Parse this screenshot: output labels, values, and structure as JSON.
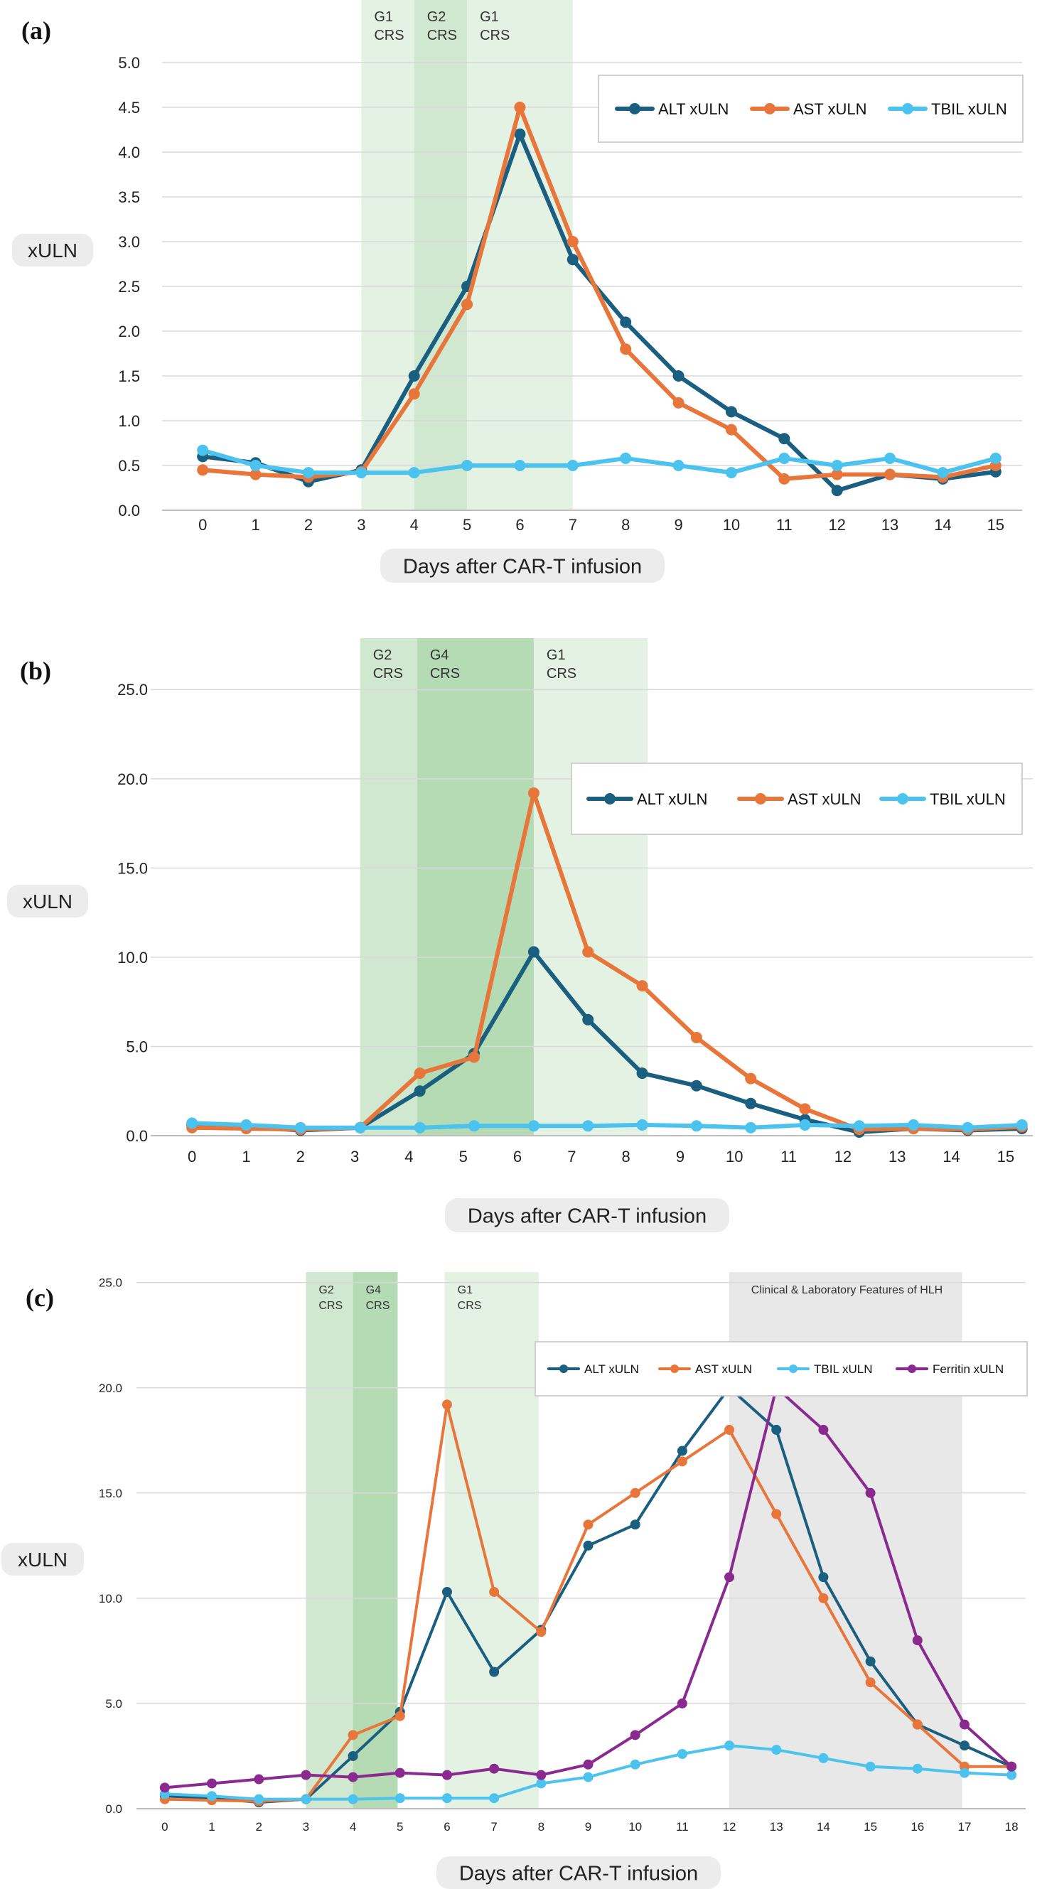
{
  "colors": {
    "ALT": "#1a5f80",
    "AST": "#e8763a",
    "TBIL": "#4bc3ee",
    "Ferritin": "#8a2a91",
    "band_light": "#e4f2e4",
    "band_mid": "#cfe8cf",
    "band_dark": "#b5dbb4",
    "band_grey": "#e8e8e8",
    "grid": "#d9d9d9",
    "label_bg": "#ececec"
  },
  "chart_data": [
    {
      "id": "a",
      "panel_label": "(a)",
      "type": "line",
      "ylabel": "xULN",
      "xlabel": "Days after CAR-T infusion",
      "xlim": [
        -0.5,
        15.5
      ],
      "ylim": [
        0,
        5
      ],
      "yticks": [
        "0.0",
        "0.5",
        "1.0",
        "1.5",
        "2.0",
        "2.5",
        "3.0",
        "3.5",
        "4.0",
        "4.5",
        "5.0"
      ],
      "ytick_values": [
        0,
        0.5,
        1,
        1.5,
        2,
        2.5,
        3,
        3.5,
        4,
        4.5,
        5
      ],
      "xticks": [
        "0",
        "1",
        "2",
        "3",
        "4",
        "5",
        "6",
        "7",
        "8",
        "9",
        "10",
        "11",
        "12",
        "13",
        "14",
        "15"
      ],
      "xtick_values": [
        0,
        1,
        2,
        3,
        4,
        5,
        6,
        7,
        8,
        9,
        10,
        11,
        12,
        13,
        14,
        15
      ],
      "grid": true,
      "legend_placement": "top-right",
      "bands": [
        {
          "from": 3,
          "to": 4,
          "shade": "light",
          "labels": [
            "G1",
            "CRS"
          ],
          "label_at": 3.25
        },
        {
          "from": 4,
          "to": 5,
          "shade": "mid",
          "labels": [
            "G2",
            "CRS"
          ],
          "label_at": 4.25
        },
        {
          "from": 5,
          "to": 7,
          "shade": "light",
          "labels": [
            "G1",
            "CRS"
          ],
          "label_at": 6.0
        }
      ],
      "series": [
        {
          "name": "ALT xULN",
          "key": "ALT",
          "x": [
            0,
            1,
            2,
            3,
            4,
            5,
            6,
            7,
            8,
            9,
            10,
            11,
            12,
            13,
            14,
            15
          ],
          "values": [
            0.6,
            0.53,
            0.32,
            0.45,
            1.5,
            2.5,
            4.2,
            2.8,
            2.1,
            1.5,
            1.1,
            0.8,
            0.22,
            0.4,
            0.35,
            0.43
          ]
        },
        {
          "name": "AST xULN",
          "key": "AST",
          "x": [
            0,
            1,
            2,
            3,
            4,
            5,
            6,
            7,
            8,
            9,
            10,
            11,
            12,
            13,
            14,
            15
          ],
          "values": [
            0.45,
            0.4,
            0.37,
            0.43,
            1.3,
            2.3,
            4.5,
            3.0,
            1.8,
            1.2,
            0.9,
            0.35,
            0.4,
            0.4,
            0.37,
            0.5
          ]
        },
        {
          "name": "TBIL xULN",
          "key": "TBIL",
          "x": [
            0,
            1,
            2,
            3,
            4,
            5,
            6,
            7,
            8,
            9,
            10,
            11,
            12,
            13,
            14,
            15
          ],
          "values": [
            0.67,
            0.5,
            0.42,
            0.42,
            0.42,
            0.5,
            0.5,
            0.5,
            0.58,
            0.5,
            0.42,
            0.58,
            0.5,
            0.58,
            0.42,
            0.58
          ]
        }
      ]
    },
    {
      "id": "b",
      "panel_label": "(b)",
      "type": "line",
      "ylabel": "xULN",
      "xlabel": "Days after CAR-T infusion",
      "xlim": [
        -0.5,
        15.5
      ],
      "ylim": [
        0,
        28
      ],
      "yticks": [
        "0.0",
        "5.0",
        "10.0",
        "15.0",
        "20.0",
        "25.0"
      ],
      "ytick_values": [
        0,
        5,
        10,
        15,
        20,
        25
      ],
      "xticks": [
        "0",
        "1",
        "2",
        "3",
        "4",
        "5",
        "6",
        "7",
        "8",
        "9",
        "10",
        "11",
        "12",
        "13",
        "14",
        "15"
      ],
      "xtick_values": [
        0,
        1,
        2,
        3,
        4,
        5,
        6,
        7,
        8,
        9,
        10,
        11,
        12,
        13,
        14,
        15
      ],
      "grid": true,
      "legend_placement": "top-right",
      "bands": [
        {
          "from": 3.1,
          "to": 4.15,
          "shade": "mid",
          "labels": [
            "G2",
            "CRS"
          ],
          "label_at": 3.55
        },
        {
          "from": 4.15,
          "to": 6.3,
          "shade": "dark",
          "labels": [
            "G4",
            "CRS"
          ],
          "label_at": 4.6
        },
        {
          "from": 6.3,
          "to": 8.4,
          "shade": "light",
          "labels": [
            "G1",
            "CRS"
          ],
          "label_at": 7.35
        }
      ],
      "series": [
        {
          "name": "ALT xULN",
          "key": "ALT",
          "x": [
            0,
            1,
            2,
            3.1,
            4.2,
            5.2,
            6.3,
            7.3,
            8.3,
            9.3,
            10.3,
            11.3,
            12.3,
            13.3,
            14.3,
            15.3
          ],
          "values": [
            0.6,
            0.5,
            0.3,
            0.45,
            2.5,
            4.6,
            10.3,
            6.5,
            3.5,
            2.8,
            1.8,
            0.9,
            0.2,
            0.4,
            0.3,
            0.4
          ]
        },
        {
          "name": "AST xULN",
          "key": "AST",
          "x": [
            0,
            1,
            2,
            3.1,
            4.2,
            5.2,
            6.3,
            7.3,
            8.3,
            9.3,
            10.3,
            11.3,
            12.3,
            13.3,
            14.3,
            15.3
          ],
          "values": [
            0.45,
            0.4,
            0.35,
            0.45,
            3.5,
            4.4,
            19.2,
            10.3,
            8.4,
            5.5,
            3.2,
            1.5,
            0.35,
            0.4,
            0.35,
            0.5
          ]
        },
        {
          "name": "TBIL xULN",
          "key": "TBIL",
          "x": [
            0,
            1,
            2,
            3.1,
            4.2,
            5.2,
            6.3,
            7.3,
            8.3,
            9.3,
            10.3,
            11.3,
            12.3,
            13.3,
            14.3,
            15.3
          ],
          "values": [
            0.7,
            0.6,
            0.45,
            0.45,
            0.45,
            0.55,
            0.55,
            0.55,
            0.6,
            0.55,
            0.45,
            0.6,
            0.55,
            0.6,
            0.45,
            0.6
          ]
        }
      ]
    },
    {
      "id": "c",
      "panel_label": "(c)",
      "type": "line",
      "ylabel": "xULN",
      "xlabel": "Days after CAR-T infusion",
      "xlim": [
        -0.3,
        18.3
      ],
      "ylim": [
        0,
        26
      ],
      "yticks": [
        "0.0",
        "5.0",
        "10.0",
        "15.0",
        "20.0",
        "25.0"
      ],
      "ytick_values": [
        0,
        5,
        10,
        15,
        20,
        25
      ],
      "xticks": [
        "0",
        "1",
        "2",
        "3",
        "4",
        "5",
        "6",
        "7",
        "8",
        "9",
        "10",
        "11",
        "12",
        "13",
        "14",
        "15",
        "16",
        "17",
        "18"
      ],
      "xtick_values": [
        0,
        1,
        2,
        3,
        4,
        5,
        6,
        7,
        8,
        9,
        10,
        11,
        12,
        13,
        14,
        15,
        16,
        17,
        18
      ],
      "grid": true,
      "legend_placement": "top-right",
      "bands": [
        {
          "from": 3,
          "to": 4,
          "shade": "mid",
          "labels": [
            "G2",
            "CRS"
          ],
          "label_at": 3.45
        },
        {
          "from": 4,
          "to": 4.95,
          "shade": "dark",
          "labels": [
            "G4",
            "CRS"
          ],
          "label_at": 4.45
        },
        {
          "from": 5.95,
          "to": 7.95,
          "shade": "light",
          "labels": [
            "G1",
            "CRS"
          ],
          "label_at": 6.95
        },
        {
          "from": 12,
          "to": 16.95,
          "shade": "grey",
          "labels": [
            "Clinical & Laboratory Features of HLH"
          ],
          "label_at": 14.5
        }
      ],
      "series": [
        {
          "name": "ALT xULN",
          "key": "ALT",
          "x": [
            0,
            1,
            2,
            3,
            4,
            5,
            6,
            7,
            8,
            9,
            10,
            11,
            12,
            13,
            14,
            15,
            16,
            17,
            18
          ],
          "values": [
            0.6,
            0.5,
            0.3,
            0.45,
            2.5,
            4.6,
            10.3,
            6.5,
            8.5,
            12.5,
            13.5,
            17.0,
            20.0,
            18.0,
            11.0,
            7.0,
            4.0,
            3.0,
            2.0
          ]
        },
        {
          "name": "AST xULN",
          "key": "AST",
          "x": [
            0,
            1,
            2,
            3,
            4,
            5,
            6,
            7,
            8,
            9,
            10,
            11,
            12,
            13,
            14,
            15,
            16,
            17,
            18
          ],
          "values": [
            0.45,
            0.4,
            0.35,
            0.45,
            3.5,
            4.4,
            19.2,
            10.3,
            8.4,
            13.5,
            15.0,
            16.5,
            18.0,
            14.0,
            10.0,
            6.0,
            4.0,
            2.0,
            2.0
          ]
        },
        {
          "name": "TBIL xULN",
          "key": "TBIL",
          "x": [
            0,
            1,
            2,
            3,
            4,
            5,
            6,
            7,
            8,
            9,
            10,
            11,
            12,
            13,
            14,
            15,
            16,
            17,
            18
          ],
          "values": [
            0.7,
            0.6,
            0.45,
            0.45,
            0.45,
            0.5,
            0.5,
            0.5,
            1.2,
            1.5,
            2.1,
            2.6,
            3.0,
            2.8,
            2.4,
            2.0,
            1.9,
            1.7,
            1.6
          ]
        },
        {
          "name": "Ferritin xULN",
          "key": "Ferritin",
          "x": [
            0,
            1,
            2,
            3,
            4,
            5,
            6,
            7,
            8,
            9,
            10,
            11,
            12,
            13,
            14,
            15,
            16,
            17,
            18
          ],
          "values": [
            1.0,
            1.2,
            1.4,
            1.6,
            1.5,
            1.7,
            1.6,
            1.9,
            1.6,
            2.1,
            3.5,
            5.0,
            11.0,
            20.0,
            18.0,
            15.0,
            8.0,
            4.0,
            2.0
          ]
        }
      ]
    }
  ]
}
